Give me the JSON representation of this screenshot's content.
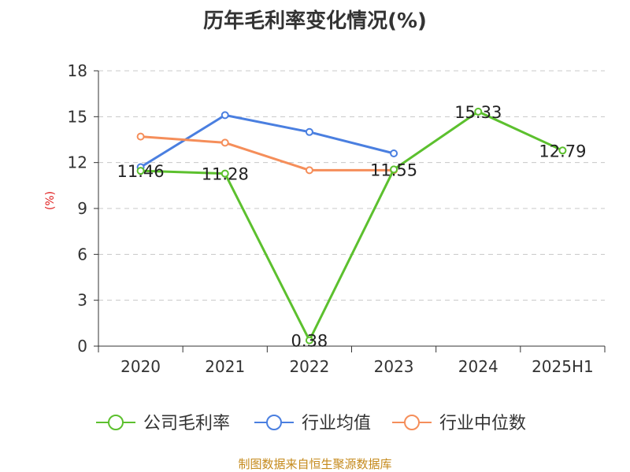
{
  "chart_data": {
    "type": "line",
    "title": "历年毛利率变化情况(%)",
    "ylabel": "(%)",
    "xlabel": "",
    "categories": [
      "2020",
      "2021",
      "2022",
      "2023",
      "2024",
      "2025H1"
    ],
    "ylim": [
      0,
      18
    ],
    "yticks": [
      0,
      3,
      6,
      9,
      12,
      15,
      18
    ],
    "grid": true,
    "legend_position": "bottom",
    "series": [
      {
        "name": "公司毛利率",
        "color": "#5cc02e",
        "values": [
          11.46,
          11.28,
          0.38,
          11.55,
          15.33,
          12.79
        ],
        "data_labels": [
          "11.46",
          "11.28",
          "0.38",
          "11.55",
          "15.33",
          "12.79"
        ]
      },
      {
        "name": "行业均值",
        "color": "#4a7fe0",
        "values": [
          11.7,
          15.1,
          14.0,
          12.6,
          null,
          null
        ]
      },
      {
        "name": "行业中位数",
        "color": "#f58e5a",
        "values": [
          13.7,
          13.3,
          11.5,
          11.5,
          null,
          null
        ]
      }
    ]
  },
  "source_note": "制图数据来自恒生聚源数据库"
}
